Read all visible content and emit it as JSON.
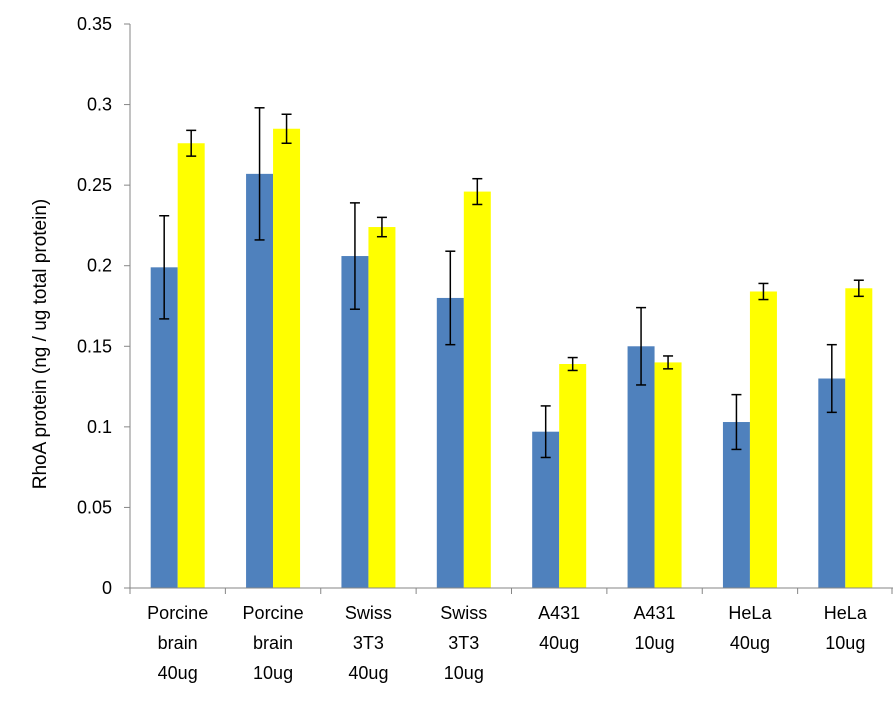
{
  "chart_data": {
    "type": "bar",
    "title": "",
    "xlabel": "",
    "ylabel": "RhoA protein (ng / ug total protein)",
    "ylim": [
      0,
      0.35
    ],
    "yticks": [
      "0",
      "0.05",
      "0.1",
      "0.15",
      "0.2",
      "0.25",
      "0.3",
      "0.35"
    ],
    "grid": false,
    "legend": "none",
    "categories": [
      [
        "Porcine",
        "brain",
        "40ug"
      ],
      [
        "Porcine",
        "brain",
        "10ug"
      ],
      [
        "Swiss",
        "3T3",
        "40ug"
      ],
      [
        "Swiss",
        "3T3",
        "10ug"
      ],
      [
        "A431",
        "40ug"
      ],
      [
        "A431",
        "10ug"
      ],
      [
        "HeLa",
        "40ug"
      ],
      [
        "HeLa",
        "10ug"
      ]
    ],
    "series": [
      {
        "color": "#4f81bd",
        "values": [
          0.199,
          0.257,
          0.206,
          0.18,
          0.097,
          0.15,
          0.103,
          0.13
        ],
        "errors": [
          0.032,
          0.041,
          0.033,
          0.029,
          0.016,
          0.024,
          0.017,
          0.021
        ]
      },
      {
        "color": "#ffff00",
        "values": [
          0.276,
          0.285,
          0.224,
          0.246,
          0.139,
          0.14,
          0.184,
          0.186
        ],
        "errors": [
          0.008,
          0.009,
          0.006,
          0.008,
          0.004,
          0.004,
          0.005,
          0.005
        ]
      }
    ]
  }
}
